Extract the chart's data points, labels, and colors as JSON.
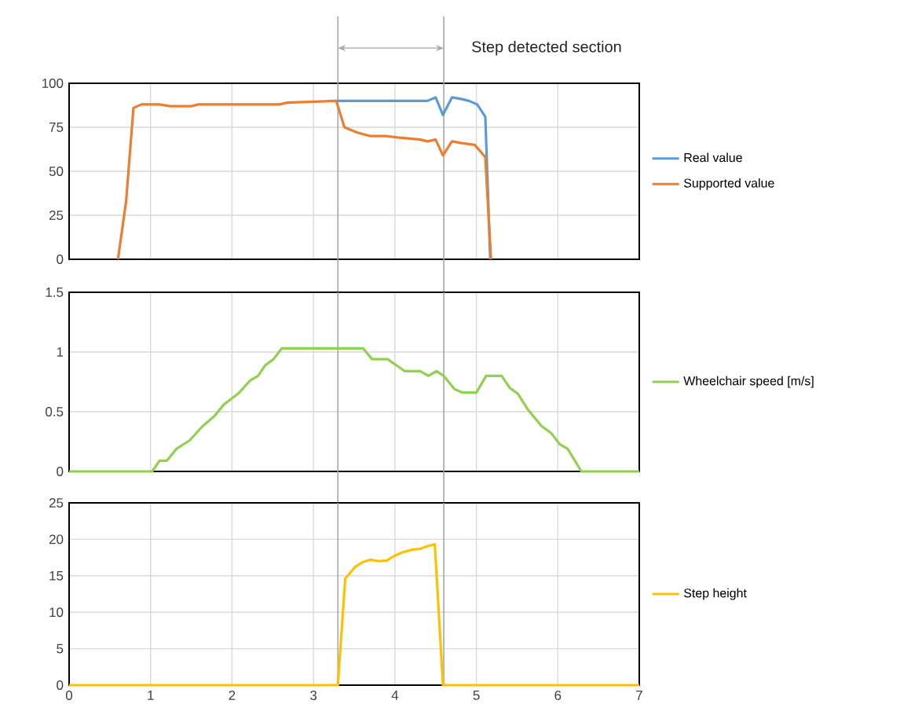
{
  "chart_data": [
    {
      "type": "line",
      "xlim": [
        0,
        7
      ],
      "xticks": [
        0,
        1,
        2,
        3,
        4,
        5,
        6,
        7
      ],
      "ylim": [
        0,
        100
      ],
      "yticks": [
        0,
        25,
        50,
        75,
        100
      ],
      "grid": true,
      "legend": "right",
      "tick_labels": "y",
      "annotations": [
        "Step detected section"
      ],
      "ref_lines": [
        {
          "axis": "x",
          "value": 3.3,
          "color": "#a6a6a6"
        },
        {
          "axis": "x",
          "value": 4.6,
          "color": "#a6a6a6"
        }
      ],
      "series": [
        {
          "name": "Real value",
          "color": "#5b9bd5",
          "x": [
            3.28,
            4.4,
            4.5,
            4.59,
            4.7,
            4.82,
            4.91,
            5.01,
            5.11,
            5.17
          ],
          "values": [
            90,
            90,
            92,
            82,
            92,
            91,
            90,
            88,
            81,
            0
          ]
        },
        {
          "name": "Supported value",
          "color": "#ed7d31",
          "x": [
            0.6,
            0.7,
            0.79,
            0.89,
            1.11,
            1.24,
            1.5,
            1.59,
            2.58,
            2.68,
            3.28,
            3.38,
            3.54,
            3.7,
            3.89,
            4.08,
            4.31,
            4.4,
            4.5,
            4.59,
            4.7,
            4.82,
            4.98,
            5.11,
            5.18
          ],
          "values": [
            0,
            33,
            86,
            88,
            88,
            87,
            87,
            88,
            88,
            89,
            90,
            75,
            72,
            70,
            70,
            69,
            68,
            67,
            68,
            59,
            67,
            66,
            65,
            58,
            0
          ]
        }
      ]
    },
    {
      "type": "line",
      "xlim": [
        0,
        7
      ],
      "xticks": [
        0,
        1,
        2,
        3,
        4,
        5,
        6,
        7
      ],
      "ylim": [
        0,
        1.5
      ],
      "yticks": [
        0,
        0.5,
        1,
        1.5
      ],
      "grid": true,
      "legend": "right",
      "tick_labels": "y",
      "ref_lines": [
        {
          "axis": "x",
          "value": 3.3,
          "color": "#a6a6a6"
        },
        {
          "axis": "x",
          "value": 4.6,
          "color": "#a6a6a6"
        }
      ],
      "series": [
        {
          "name": "Wheelchair speed [m/s]",
          "color": "#92d050",
          "x": [
            0,
            1.02,
            1.11,
            1.2,
            1.32,
            1.48,
            1.64,
            1.78,
            1.9,
            2.09,
            2.22,
            2.32,
            2.41,
            2.51,
            2.61,
            3.61,
            3.72,
            3.91,
            4.12,
            4.31,
            4.41,
            4.51,
            4.6,
            4.73,
            4.83,
            5.0,
            5.12,
            5.31,
            5.41,
            5.51,
            5.63,
            5.8,
            5.92,
            6.02,
            6.12,
            6.29,
            7
          ],
          "values": [
            0,
            0,
            0.09,
            0.09,
            0.19,
            0.26,
            0.38,
            0.46,
            0.56,
            0.66,
            0.76,
            0.8,
            0.89,
            0.94,
            1.03,
            1.03,
            0.94,
            0.94,
            0.84,
            0.84,
            0.8,
            0.84,
            0.8,
            0.69,
            0.66,
            0.66,
            0.8,
            0.8,
            0.7,
            0.65,
            0.52,
            0.38,
            0.32,
            0.23,
            0.19,
            0,
            0
          ]
        }
      ]
    },
    {
      "type": "line",
      "xlim": [
        0,
        7
      ],
      "xticks": [
        0,
        1,
        2,
        3,
        4,
        5,
        6,
        7
      ],
      "ylim": [
        0,
        25
      ],
      "yticks": [
        0,
        5,
        10,
        15,
        20,
        25
      ],
      "grid": true,
      "legend": "right",
      "ref_lines": [
        {
          "axis": "x",
          "value": 3.3,
          "color": "#a6a6a6"
        },
        {
          "axis": "x",
          "value": 4.6,
          "color": "#a6a6a6"
        }
      ],
      "series": [
        {
          "name": "Step height",
          "color": "#ffc000",
          "x": [
            0,
            3.3,
            3.39,
            3.51,
            3.61,
            3.7,
            3.8,
            3.9,
            3.99,
            4.09,
            4.22,
            4.31,
            4.41,
            4.49,
            4.59,
            7
          ],
          "values": [
            0,
            0,
            14.6,
            16.2,
            16.9,
            17.2,
            17.0,
            17.1,
            17.7,
            18.2,
            18.6,
            18.7,
            19.1,
            19.3,
            0,
            0
          ]
        }
      ]
    }
  ]
}
